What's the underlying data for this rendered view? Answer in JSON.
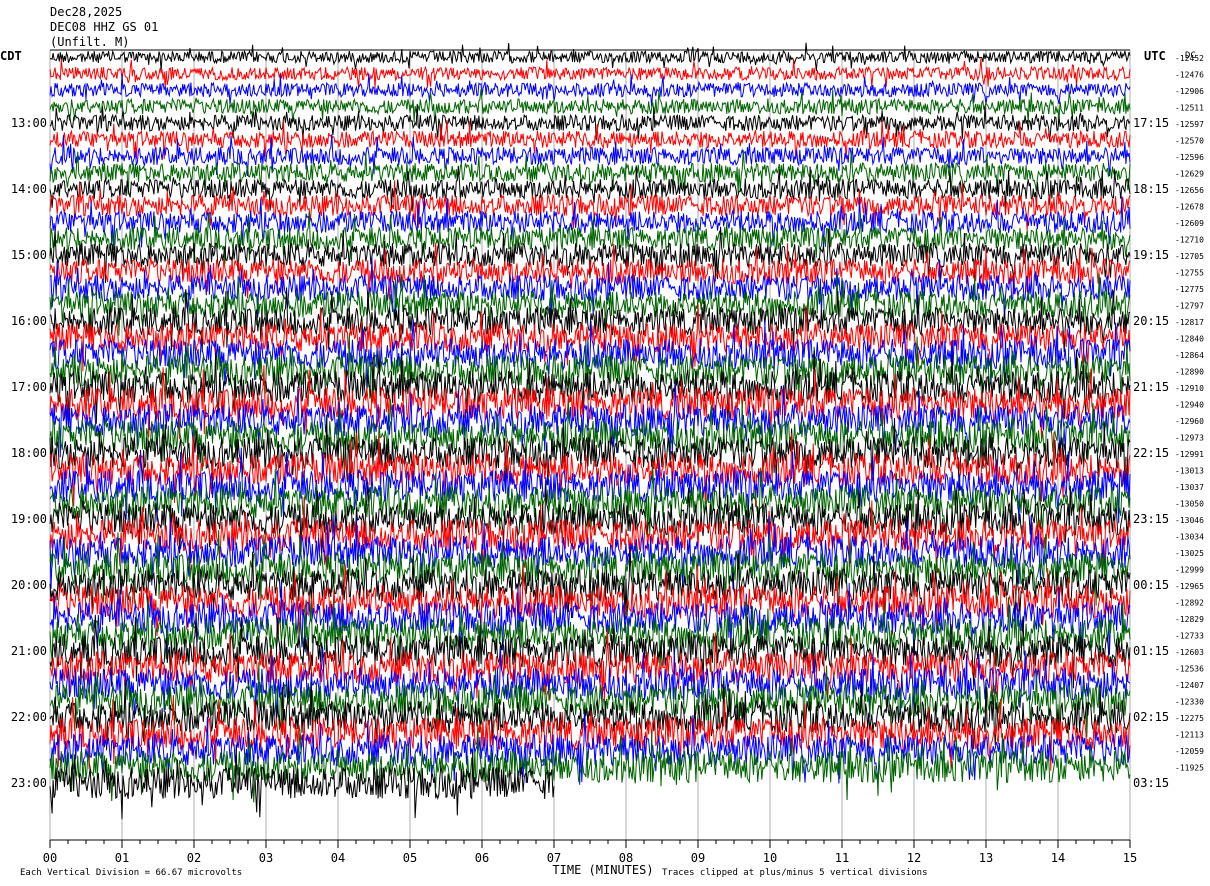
{
  "header": {
    "date": "Dec28,2025",
    "station": "DEC08 HHZ GS 01",
    "filter": "(Unfilt. M)"
  },
  "chart_data": {
    "type": "helicorder",
    "left_zone_label": "CDT",
    "right_zone_label": "UTC",
    "dc_label": "DC",
    "x_label": "TIME (MINUTES)",
    "x_ticks": [
      "00",
      "01",
      "02",
      "03",
      "04",
      "05",
      "06",
      "07",
      "08",
      "09",
      "10",
      "11",
      "12",
      "13",
      "14",
      "15"
    ],
    "x_range": [
      0,
      15
    ],
    "left_hour_labels": [
      "13:00",
      "14:00",
      "15:00",
      "16:00",
      "17:00",
      "18:00",
      "19:00",
      "20:00",
      "21:00",
      "22:00",
      "23:00"
    ],
    "right_hour_labels": [
      "17:15",
      "18:15",
      "19:15",
      "20:15",
      "21:15",
      "22:15",
      "23:15",
      "00:15",
      "01:15",
      "02:15",
      "03:15"
    ],
    "trace_colors": [
      "#000000",
      "#ff0000",
      "#0000ff",
      "#006400"
    ],
    "trace_count": 45,
    "partial_last_trace_minutes": 7,
    "dc_offsets": [
      "-12452",
      "-12476",
      "-12906",
      "-12511",
      "-12597",
      "-12570",
      "-12596",
      "-12629",
      "-12656",
      "-12678",
      "-12609",
      "-12710",
      "-12705",
      "-12755",
      "-12775",
      "-12797",
      "-12817",
      "-12840",
      "-12864",
      "-12890",
      "-12910",
      "-12940",
      "-12960",
      "-12973",
      "-12991",
      "-13013",
      "-13037",
      "-13050",
      "-13046",
      "-13034",
      "-13025",
      "-12999",
      "-12965",
      "-12892",
      "-12829",
      "-12733",
      "-12603",
      "-12536",
      "-12407",
      "-12330",
      "-12275",
      "-12113",
      "-12059",
      "-11925"
    ],
    "footer_left": "Each Vertical Division =   66.67 microvolts",
    "footer_right": "Traces clipped at plus/minus 5 vertical divisions"
  }
}
